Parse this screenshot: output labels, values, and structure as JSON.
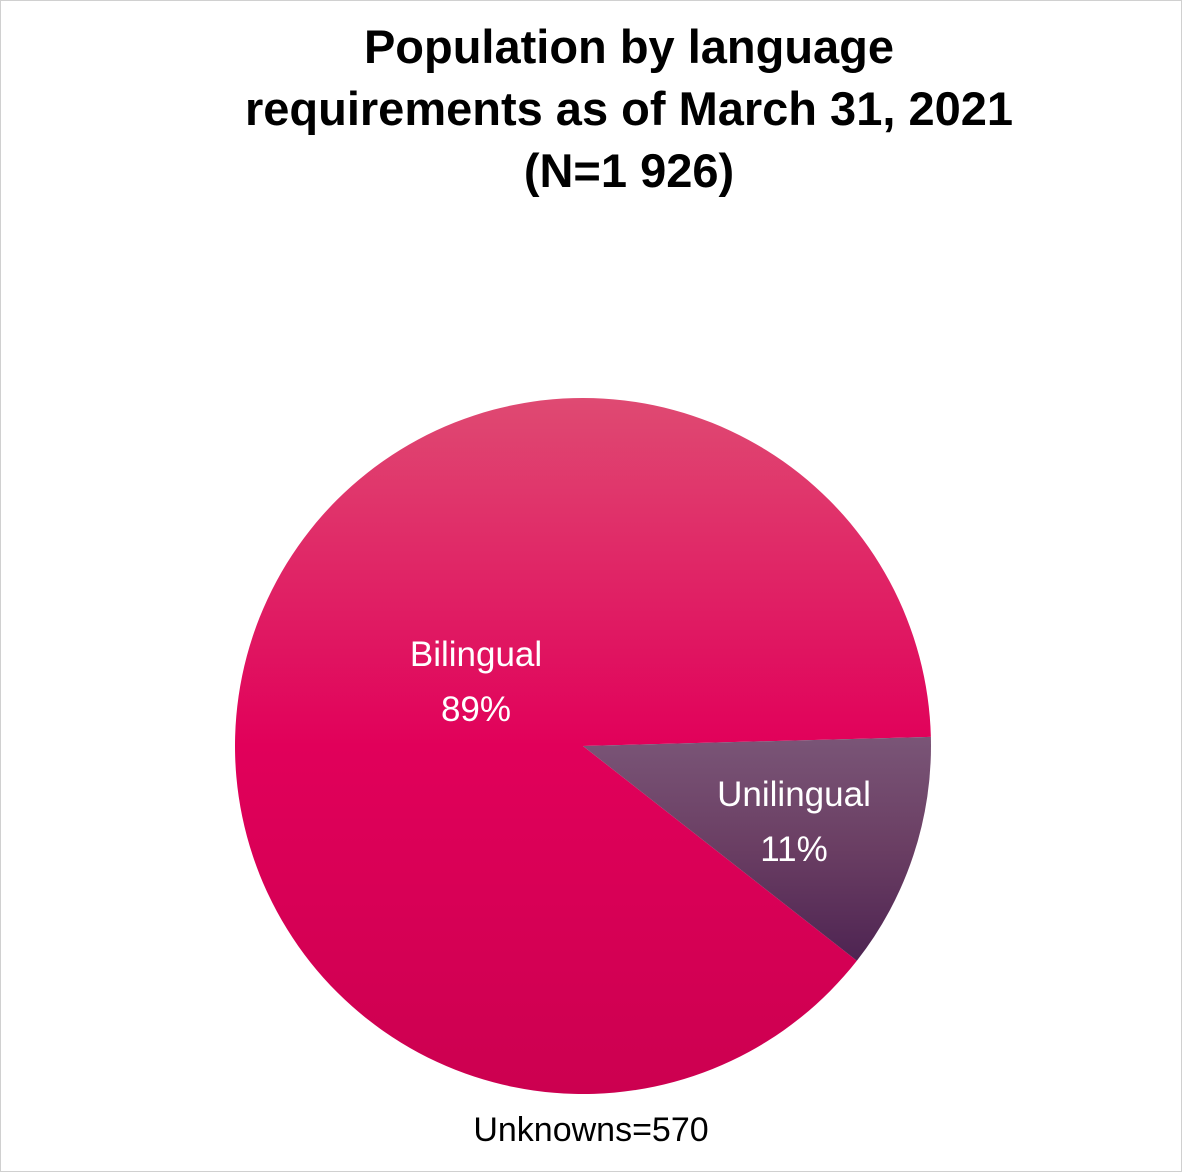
{
  "chart_data": {
    "type": "pie",
    "title_lines": [
      "Population by language",
      "requirements as of March 31, 2021",
      "(N=1 926)"
    ],
    "slices": [
      {
        "name": "Bilingual",
        "value": 89,
        "label": "89%",
        "color_top": "#df4a72",
        "color_mid": "#e1005a",
        "color_bottom": "#cc0050"
      },
      {
        "name": "Unilingual",
        "value": 11,
        "label": "11%",
        "color_top": "#7a5577",
        "color_mid": "#6a3e63",
        "color_bottom": "#4e2452"
      }
    ],
    "footnote": "Unknowns=570",
    "legend": "none",
    "data_labels": "inside"
  }
}
